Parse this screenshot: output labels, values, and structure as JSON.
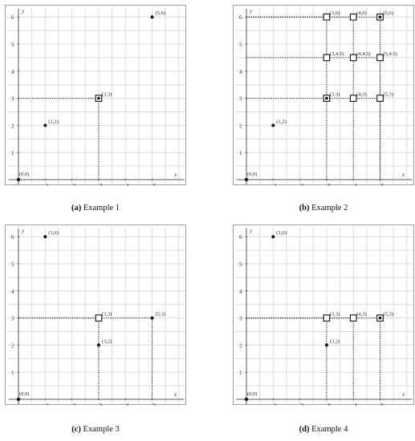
{
  "panels": [
    {
      "caption_letter": "(a)",
      "caption_text": " Example 1",
      "origin_label": "(0,0)",
      "x_axis_label": "x",
      "y_axis_label": "y",
      "x_ticks": [
        "1",
        "2",
        "3",
        "4",
        "5"
      ],
      "y_ticks": [
        "1",
        "2",
        "3",
        "4",
        "5",
        "6"
      ],
      "points": [
        {
          "x": 1,
          "y": 2,
          "label": "(1,2)",
          "marker": "dot"
        },
        {
          "x": 3,
          "y": 3,
          "label": "(3,3)",
          "marker": "boxdot"
        },
        {
          "x": 5,
          "y": 6,
          "label": "(5,6)",
          "marker": "dot"
        }
      ],
      "guides": [
        {
          "x": 3,
          "y": 3
        }
      ]
    },
    {
      "caption_letter": "(b)",
      "caption_text": " Example 2",
      "origin_label": "(0,0)",
      "x_axis_label": "x",
      "y_axis_label": "y",
      "x_ticks": [
        "1",
        "2",
        "3",
        "4",
        "5"
      ],
      "y_ticks": [
        "1",
        "2",
        "3",
        "4",
        "5",
        "6"
      ],
      "points": [
        {
          "x": 1,
          "y": 2,
          "label": "(1,2)",
          "marker": "dot"
        },
        {
          "x": 3,
          "y": 3,
          "label": "(3,3)",
          "marker": "boxdot"
        },
        {
          "x": 4,
          "y": 3,
          "label": "(4,3)",
          "marker": "box"
        },
        {
          "x": 5,
          "y": 3,
          "label": "(5,3)",
          "marker": "box"
        },
        {
          "x": 3,
          "y": 4.5,
          "label": "(3,4.5)",
          "marker": "box"
        },
        {
          "x": 4,
          "y": 4.5,
          "label": "(4,4.5)",
          "marker": "box"
        },
        {
          "x": 5,
          "y": 4.5,
          "label": "(5,4.5)",
          "marker": "box"
        },
        {
          "x": 3,
          "y": 6,
          "label": "(3,6)",
          "marker": "box"
        },
        {
          "x": 4,
          "y": 6,
          "label": "(4,6)",
          "marker": "box"
        },
        {
          "x": 5,
          "y": 6,
          "label": "(5,6)",
          "marker": "boxdot"
        }
      ],
      "guides": [
        {
          "x": 3,
          "y": 6
        },
        {
          "x": 4,
          "y": 6
        },
        {
          "x": 5,
          "y": 6
        },
        {
          "x": 5,
          "y": 4.5
        },
        {
          "x": 5,
          "y": 3
        }
      ]
    },
    {
      "caption_letter": "(c)",
      "caption_text": " Example 3",
      "origin_label": "(0,0)",
      "x_axis_label": "x",
      "y_axis_label": "y",
      "x_ticks": [
        "1",
        "2",
        "3",
        "4",
        "5"
      ],
      "y_ticks": [
        "1",
        "2",
        "3",
        "4",
        "5",
        "6"
      ],
      "points": [
        {
          "x": 1,
          "y": 6,
          "label": "(1,6)",
          "marker": "dot"
        },
        {
          "x": 3,
          "y": 3,
          "label": "(3,3)",
          "marker": "box"
        },
        {
          "x": 3,
          "y": 2,
          "label": "(3,2)",
          "marker": "dot"
        },
        {
          "x": 5,
          "y": 3,
          "label": "(5,3)",
          "marker": "dot"
        }
      ],
      "guides": [
        {
          "x": 5,
          "y": 3
        },
        {
          "x": 3,
          "y": 3
        }
      ]
    },
    {
      "caption_letter": "(d)",
      "caption_text": " Example 4",
      "origin_label": "(0,0)",
      "x_axis_label": "x",
      "y_axis_label": "y",
      "x_ticks": [
        "1",
        "2",
        "3",
        "4",
        "5"
      ],
      "y_ticks": [
        "1",
        "2",
        "3",
        "4",
        "5",
        "6"
      ],
      "points": [
        {
          "x": 1,
          "y": 6,
          "label": "(1,6)",
          "marker": "dot"
        },
        {
          "x": 3,
          "y": 3,
          "label": "(3,3)",
          "marker": "box"
        },
        {
          "x": 4,
          "y": 3,
          "label": "(4,3)",
          "marker": "box"
        },
        {
          "x": 5,
          "y": 3,
          "label": "(5,3)",
          "marker": "boxdot"
        },
        {
          "x": 3,
          "y": 2,
          "label": "(3,2)",
          "marker": "dot"
        }
      ],
      "guides": [
        {
          "x": 5,
          "y": 3
        },
        {
          "x": 3,
          "y": 3
        },
        {
          "x": 4,
          "y": 3
        }
      ]
    }
  ]
}
